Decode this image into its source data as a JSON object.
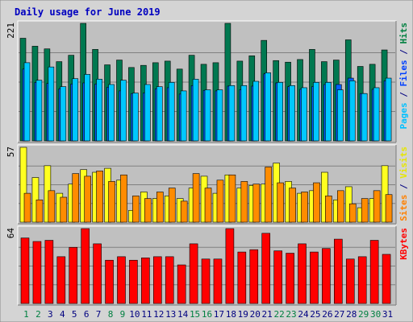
{
  "chart_data": {
    "type": "bar",
    "title": "Daily usage for June 2019",
    "categories": [
      "1",
      "2",
      "3",
      "4",
      "5",
      "6",
      "7",
      "8",
      "9",
      "10",
      "11",
      "12",
      "13",
      "14",
      "15",
      "16",
      "17",
      "18",
      "19",
      "20",
      "21",
      "22",
      "23",
      "24",
      "25",
      "26",
      "27",
      "28",
      "29",
      "30",
      "31"
    ],
    "weekend_days": [
      "1",
      "2",
      "8",
      "9",
      "15",
      "16",
      "22",
      "23",
      "29",
      "30"
    ],
    "panels": [
      {
        "id": "pages_files_hits",
        "ylim": [
          0,
          221
        ],
        "max_label": "221",
        "axis_labels": [
          {
            "text": "Pages",
            "color": "#00c0ff"
          },
          {
            "text": " / ",
            "color": "#000080"
          },
          {
            "text": "Files",
            "color": "#0040ff"
          },
          {
            "text": " / ",
            "color": "#000080"
          },
          {
            "text": "Hits",
            "color": "#008040"
          }
        ],
        "series": [
          {
            "name": "Hits",
            "color": "#007850",
            "values": [
              193,
              178,
              173,
              149,
              161,
              221,
              172,
              143,
              152,
              138,
              142,
              147,
              150,
              135,
              161,
              144,
              147,
              221,
              150,
              160,
              189,
              151,
              148,
              153,
              172,
              149,
              152,
              190,
              140,
              144,
              171
            ]
          },
          {
            "name": "Files",
            "color": "#0060ff",
            "values": [
              135,
              110,
              108,
              98,
              107,
              109,
              107,
              101,
              94,
              89,
              90,
              98,
              100,
              88,
              104,
              95,
              94,
              103,
              96,
              103,
              126,
              109,
              102,
              97,
              102,
              106,
              106,
              118,
              89,
              97,
              113
            ]
          },
          {
            "name": "Pages",
            "color": "#00c8ff",
            "values": [
              147,
              114,
              139,
              102,
              117,
              125,
              116,
              106,
              114,
              90,
              106,
              102,
              110,
              94,
              116,
              96,
              96,
              104,
              104,
              112,
              128,
              110,
              104,
              100,
              110,
              110,
              96,
              113,
              89,
              100,
              118
            ]
          }
        ]
      },
      {
        "id": "visits_sites",
        "ylim": [
          0,
          57
        ],
        "max_label": "57",
        "axis_labels": [
          {
            "text": "Sites",
            "color": "#ff8000"
          },
          {
            "text": " / ",
            "color": "#000080"
          },
          {
            "text": "Visits",
            "color": "#e6e600"
          }
        ],
        "series": [
          {
            "name": "Visits",
            "color": "#ffff20",
            "values": [
              57,
              34,
              43,
              22,
              29,
              40,
              38,
              41,
              32,
              9,
              23,
              18,
              20,
              18,
              26,
              35,
              22,
              36,
              26,
              28,
              29,
              45,
              31,
              22,
              24,
              38,
              17,
              27,
              11,
              18,
              43
            ]
          },
          {
            "name": "Sites",
            "color": "#ff8c00",
            "values": [
              22,
              17,
              24,
              19,
              37,
              35,
              39,
              31,
              36,
              20,
              18,
              23,
              26,
              16,
              37,
              26,
              32,
              36,
              31,
              29,
              42,
              30,
              26,
              23,
              30,
              20,
              24,
              14,
              18,
              24,
              21
            ]
          }
        ]
      },
      {
        "id": "kbytes",
        "ylim": [
          0,
          64
        ],
        "max_label": "64",
        "axis_labels": [
          {
            "text": "KBytes",
            "color": "#ff0000"
          }
        ],
        "series": [
          {
            "name": "KBytes",
            "color": "#ff0000",
            "values": [
              56,
              53,
              54,
              40,
              48,
              64,
              51,
              37,
              40,
              37,
              39,
              40,
              40,
              33,
              51,
              38,
              38,
              64,
              44,
              46,
              60,
              45,
              43,
              51,
              44,
              47,
              55,
              38,
              40,
              54,
              42
            ]
          }
        ]
      }
    ]
  },
  "colors": {
    "title": "#0000c0",
    "axis_text": "#000000",
    "weekday_label": "#000080",
    "weekend_label": "#008040",
    "frame_bg": "#c0c0c0",
    "page_bg": "#d4d4d4"
  }
}
